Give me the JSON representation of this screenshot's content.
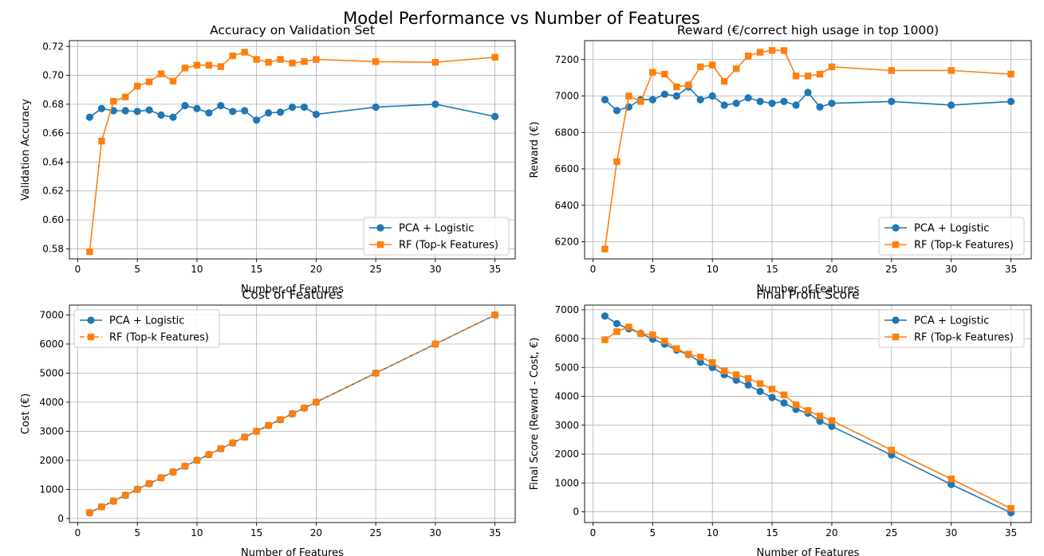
{
  "suptitle": "Model Performance vs Number of Features",
  "colors": {
    "pca": "#1f77b4",
    "rf": "#ff7f0e",
    "grid": "#b0b0b0",
    "axes": "#000000"
  },
  "chart_data": [
    {
      "type": "line",
      "title": "Accuracy on Validation Set",
      "xlabel": "Number of Features",
      "ylabel": "Validation Accuracy",
      "xlim": [
        -0.7,
        36.7
      ],
      "ylim": [
        0.573,
        0.724
      ],
      "xticks": [
        0,
        5,
        10,
        15,
        20,
        25,
        30,
        35
      ],
      "yticks": [
        0.58,
        0.6,
        0.62,
        0.64,
        0.66,
        0.68,
        0.7,
        0.72
      ],
      "ytick_labels": [
        "0.58",
        "0.60",
        "0.62",
        "0.64",
        "0.66",
        "0.68",
        "0.70",
        "0.72"
      ],
      "grid": true,
      "legend_position": "lower right",
      "x": [
        1,
        2,
        3,
        4,
        5,
        6,
        7,
        8,
        9,
        10,
        11,
        12,
        13,
        14,
        15,
        16,
        17,
        18,
        19,
        20,
        25,
        30,
        35
      ],
      "series": [
        {
          "name": "PCA + Logistic",
          "marker": "circle",
          "linestyle": "solid",
          "values": [
            0.671,
            0.677,
            0.6755,
            0.6755,
            0.675,
            0.676,
            0.6725,
            0.671,
            0.679,
            0.677,
            0.674,
            0.679,
            0.675,
            0.6755,
            0.669,
            0.674,
            0.6745,
            0.678,
            0.678,
            0.673,
            0.678,
            0.68,
            0.6715
          ]
        },
        {
          "name": "RF (Top-k Features)",
          "marker": "square",
          "linestyle": "solid",
          "values": [
            0.578,
            0.6545,
            0.682,
            0.685,
            0.6925,
            0.6955,
            0.701,
            0.696,
            0.705,
            0.707,
            0.707,
            0.706,
            0.7135,
            0.716,
            0.711,
            0.709,
            0.711,
            0.7085,
            0.7095,
            0.711,
            0.7095,
            0.709,
            0.7125
          ]
        }
      ]
    },
    {
      "type": "line",
      "title": "Reward (€/correct high usage in top 1000)",
      "xlabel": "Number of Features",
      "ylabel": "Reward (€)",
      "xlim": [
        -0.7,
        36.7
      ],
      "ylim": [
        6106,
        7304
      ],
      "xticks": [
        0,
        5,
        10,
        15,
        20,
        25,
        30,
        35
      ],
      "yticks": [
        6200,
        6400,
        6600,
        6800,
        7000,
        7200
      ],
      "ytick_labels": [
        "6200",
        "6400",
        "6600",
        "6800",
        "7000",
        "7200"
      ],
      "grid": true,
      "legend_position": "lower right",
      "x": [
        1,
        2,
        3,
        4,
        5,
        6,
        7,
        8,
        9,
        10,
        11,
        12,
        13,
        14,
        15,
        16,
        17,
        18,
        19,
        20,
        25,
        30,
        35
      ],
      "series": [
        {
          "name": "PCA + Logistic",
          "marker": "circle",
          "linestyle": "solid",
          "values": [
            6980,
            6920,
            6940,
            6980,
            6980,
            7010,
            7000,
            7050,
            6980,
            7000,
            6950,
            6960,
            6990,
            6970,
            6960,
            6970,
            6950,
            7020,
            6940,
            6960,
            6970,
            6950,
            6970
          ]
        },
        {
          "name": "RF (Top-k Features)",
          "marker": "square",
          "linestyle": "solid",
          "values": [
            6160,
            6640,
            7000,
            6970,
            7130,
            7120,
            7050,
            7060,
            7160,
            7170,
            7080,
            7150,
            7220,
            7240,
            7250,
            7250,
            7110,
            7110,
            7120,
            7160,
            7140,
            7140,
            7120
          ]
        }
      ]
    },
    {
      "type": "line",
      "title": "Cost of Features",
      "xlabel": "Number of Features",
      "ylabel": "Cost (€)",
      "xlim": [
        -0.7,
        36.7
      ],
      "ylim": [
        -140,
        7340
      ],
      "xticks": [
        0,
        5,
        10,
        15,
        20,
        25,
        30,
        35
      ],
      "yticks": [
        0,
        1000,
        2000,
        3000,
        4000,
        5000,
        6000,
        7000
      ],
      "ytick_labels": [
        "0",
        "1000",
        "2000",
        "3000",
        "4000",
        "5000",
        "6000",
        "7000"
      ],
      "grid": true,
      "legend_position": "upper left",
      "x": [
        1,
        2,
        3,
        4,
        5,
        6,
        7,
        8,
        9,
        10,
        11,
        12,
        13,
        14,
        15,
        16,
        17,
        18,
        19,
        20,
        25,
        30,
        35
      ],
      "series": [
        {
          "name": "PCA + Logistic",
          "marker": "circle",
          "linestyle": "solid",
          "values": [
            200,
            400,
            600,
            800,
            1000,
            1200,
            1400,
            1600,
            1800,
            2000,
            2200,
            2400,
            2600,
            2800,
            3000,
            3200,
            3400,
            3600,
            3800,
            4000,
            5000,
            6000,
            7000
          ]
        },
        {
          "name": "RF (Top-k Features)",
          "marker": "square",
          "linestyle": "dashed",
          "values": [
            200,
            400,
            600,
            800,
            1000,
            1200,
            1400,
            1600,
            1800,
            2000,
            2200,
            2400,
            2600,
            2800,
            3000,
            3200,
            3400,
            3600,
            3800,
            4000,
            5000,
            6000,
            7000
          ]
        }
      ]
    },
    {
      "type": "line",
      "title": "Final Profit Score",
      "xlabel": "Number of Features",
      "ylabel": "Final Score (Reward - Cost, €)",
      "xlim": [
        -0.7,
        36.7
      ],
      "ylim": [
        -370,
        7160
      ],
      "xticks": [
        0,
        5,
        10,
        15,
        20,
        25,
        30,
        35
      ],
      "yticks": [
        0,
        1000,
        2000,
        3000,
        4000,
        5000,
        6000,
        7000
      ],
      "ytick_labels": [
        "0",
        "1000",
        "2000",
        "3000",
        "4000",
        "5000",
        "6000",
        "7000"
      ],
      "grid": true,
      "legend_position": "upper right",
      "x": [
        1,
        2,
        3,
        4,
        5,
        6,
        7,
        8,
        9,
        10,
        11,
        12,
        13,
        14,
        15,
        16,
        17,
        18,
        19,
        20,
        25,
        30,
        35
      ],
      "series": [
        {
          "name": "PCA + Logistic",
          "marker": "circle",
          "linestyle": "solid",
          "values": [
            6780,
            6520,
            6340,
            6180,
            5980,
            5810,
            5600,
            5450,
            5180,
            5000,
            4750,
            4560,
            4390,
            4170,
            3960,
            3770,
            3550,
            3420,
            3140,
            2960,
            1970,
            950,
            -30
          ]
        },
        {
          "name": "RF (Top-k Features)",
          "marker": "square",
          "linestyle": "solid",
          "values": [
            5960,
            6240,
            6400,
            6170,
            6130,
            5920,
            5650,
            5460,
            5360,
            5170,
            4880,
            4750,
            4620,
            4440,
            4250,
            4050,
            3710,
            3510,
            3320,
            3160,
            2140,
            1140,
            120
          ]
        }
      ]
    }
  ]
}
